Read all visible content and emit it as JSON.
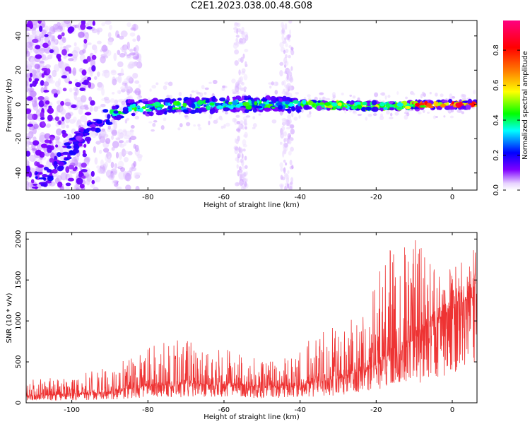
{
  "title": "C2E1.2023.038.00.48.G08",
  "chart_data": [
    {
      "type": "heatmap",
      "xlabel": "Height of straight line (km)",
      "ylabel": "Frequency (Hz)",
      "xlim": [
        -112,
        6.5
      ],
      "ylim": [
        -50,
        49
      ],
      "xticks": [
        -100,
        -80,
        -60,
        -40,
        -20,
        0
      ],
      "yticks": [
        -40,
        -20,
        0,
        20,
        40
      ],
      "colorbar": {
        "label": "Normalized spectral amplitude",
        "range": [
          0,
          0.97
        ],
        "ticks": [
          0.0,
          0.2,
          0.4,
          0.6,
          0.8
        ],
        "colors": [
          "#ffffff",
          "#7f00ff",
          "#0000ff",
          "#00ffff",
          "#00ff00",
          "#ffff00",
          "#ff7f00",
          "#ff0000",
          "#ff0080"
        ]
      },
      "ridge": {
        "description_values": [
          {
            "x": -108,
            "y": -45
          },
          {
            "x": -100,
            "y": -25
          },
          {
            "x": -92,
            "y": -8
          },
          {
            "x": -85,
            "y": -2
          },
          {
            "x": -60,
            "y": 0
          },
          {
            "x": -40,
            "y": 0
          },
          {
            "x": -20,
            "y": -1
          },
          {
            "x": 0,
            "y": 0
          },
          {
            "x": 6,
            "y": 0
          }
        ]
      }
    },
    {
      "type": "line",
      "xlabel": "Height of straight line (km)",
      "ylabel": "SNR (10 * v/v)",
      "xlim": [
        -112,
        6.5
      ],
      "ylim": [
        0,
        2080
      ],
      "xticks": [
        -100,
        -80,
        -60,
        -40,
        -20,
        0
      ],
      "yticks": [
        0,
        500,
        1000,
        1500,
        2000
      ],
      "color": "#ee3333",
      "envelope": [
        {
          "x": -112,
          "base": 80,
          "peak": 280
        },
        {
          "x": -100,
          "base": 100,
          "peak": 320
        },
        {
          "x": -90,
          "base": 130,
          "peak": 450
        },
        {
          "x": -80,
          "base": 200,
          "peak": 700
        },
        {
          "x": -70,
          "base": 230,
          "peak": 780
        },
        {
          "x": -60,
          "base": 220,
          "peak": 680
        },
        {
          "x": -50,
          "base": 180,
          "peak": 520
        },
        {
          "x": -42,
          "base": 200,
          "peak": 550
        },
        {
          "x": -35,
          "base": 250,
          "peak": 900
        },
        {
          "x": -28,
          "base": 320,
          "peak": 1000
        },
        {
          "x": -22,
          "base": 400,
          "peak": 1300
        },
        {
          "x": -16,
          "base": 600,
          "peak": 1950
        },
        {
          "x": -9,
          "base": 800,
          "peak": 2050
        },
        {
          "x": -4,
          "base": 1000,
          "peak": 1600
        },
        {
          "x": 0,
          "base": 1150,
          "peak": 1650
        },
        {
          "x": 6,
          "base": 1300,
          "peak": 1950
        }
      ]
    }
  ]
}
